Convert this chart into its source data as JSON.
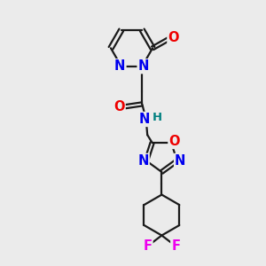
{
  "background_color": "#ebebeb",
  "bond_color": "#1a1a1a",
  "bond_width": 1.6,
  "atom_colors": {
    "N": "#0000ee",
    "O": "#ee0000",
    "F": "#ee00ee",
    "H": "#008080",
    "C": "#1a1a1a"
  },
  "font_size_atom": 10.5,
  "font_size_h": 9.5
}
